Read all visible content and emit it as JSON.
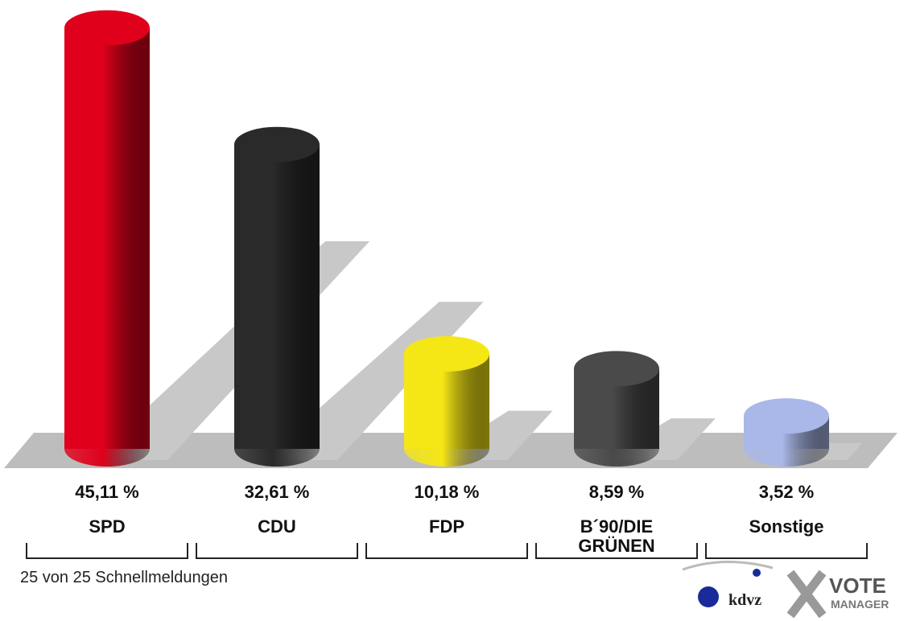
{
  "chart_data": {
    "type": "bar",
    "categories": [
      "SPD",
      "CDU",
      "FDP",
      "B´90/DIE GRÜNEN",
      "Sonstige"
    ],
    "values": [
      45.11,
      32.61,
      10.18,
      8.59,
      3.52
    ],
    "value_labels": [
      "45,11 %",
      "32,61 %",
      "10,18 %",
      "8,59 %",
      "3,52 %"
    ],
    "colors": [
      "#e0001b",
      "#2a2a2a",
      "#f5e616",
      "#4a4a4a",
      "#a9b8e8"
    ],
    "footnote": "25 von 25 Schnellmeldungen"
  },
  "branding": {
    "kdvz": "kdvz",
    "vote": "VOTE",
    "manager": "MANAGER"
  }
}
